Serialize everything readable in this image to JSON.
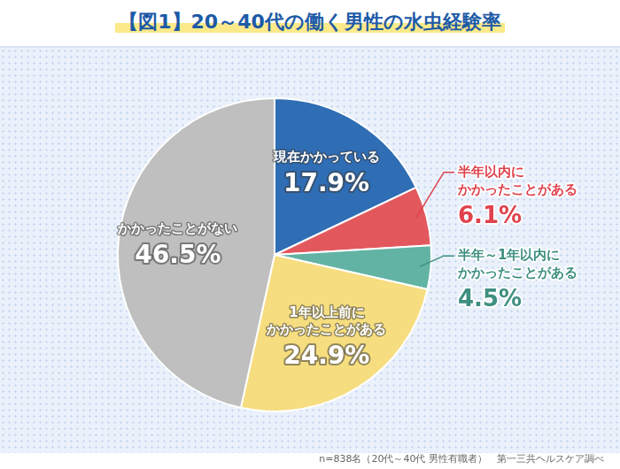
{
  "chart_data": {
    "type": "pie",
    "title": "【図1】20～40代の働く男性の水虫経験率",
    "categories": [
      "現在かかっている",
      "半年以内に\nかかったことがある",
      "半年～1年以内に\nかかったことがある",
      "1年以上前に\nかかったことがある",
      "かかったことがない"
    ],
    "values": [
      17.9,
      6.1,
      4.5,
      24.9,
      46.5
    ],
    "value_labels": [
      "17.9%",
      "6.1%",
      "4.5%",
      "24.9%",
      "46.5%"
    ],
    "colors": [
      "#2f6db5",
      "#e3585d",
      "#62b3a3",
      "#f6dd7f",
      "#bfbfbf"
    ],
    "data_labels": true,
    "annotations": [
      "n=838名（20代～40代 男性有職者）　第一三共ヘルスケア調べ"
    ]
  }
}
